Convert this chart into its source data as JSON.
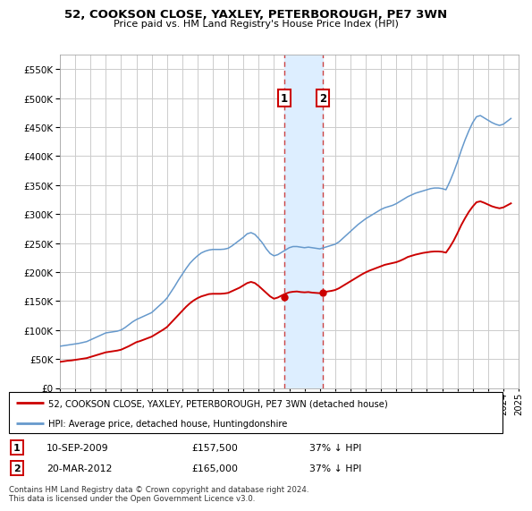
{
  "title": "52, COOKSON CLOSE, YAXLEY, PETERBOROUGH, PE7 3WN",
  "subtitle": "Price paid vs. HM Land Registry's House Price Index (HPI)",
  "legend_line1": "52, COOKSON CLOSE, YAXLEY, PETERBOROUGH, PE7 3WN (detached house)",
  "legend_line2": "HPI: Average price, detached house, Huntingdonshire",
  "footer": "Contains HM Land Registry data © Crown copyright and database right 2024.\nThis data is licensed under the Open Government Licence v3.0.",
  "transaction1_date": "10-SEP-2009",
  "transaction1_price": "£157,500",
  "transaction1_hpi": "37% ↓ HPI",
  "transaction1_year": 2009.69,
  "transaction1_value": 157500,
  "transaction2_date": "20-MAR-2012",
  "transaction2_price": "£165,000",
  "transaction2_hpi": "37% ↓ HPI",
  "transaction2_year": 2012.22,
  "transaction2_value": 165000,
  "red_color": "#cc0000",
  "blue_color": "#6699cc",
  "background_color": "#ffffff",
  "grid_color": "#cccccc",
  "shade_color": "#ddeeff",
  "ylim": [
    0,
    575000
  ],
  "yticks": [
    0,
    50000,
    100000,
    150000,
    200000,
    250000,
    300000,
    350000,
    400000,
    450000,
    500000,
    550000
  ],
  "xlim": [
    1995,
    2025
  ],
  "hpi_data_years": [
    1995.0,
    1995.25,
    1995.5,
    1995.75,
    1996.0,
    1996.25,
    1996.5,
    1996.75,
    1997.0,
    1997.25,
    1997.5,
    1997.75,
    1998.0,
    1998.25,
    1998.5,
    1998.75,
    1999.0,
    1999.25,
    1999.5,
    1999.75,
    2000.0,
    2000.25,
    2000.5,
    2000.75,
    2001.0,
    2001.25,
    2001.5,
    2001.75,
    2002.0,
    2002.25,
    2002.5,
    2002.75,
    2003.0,
    2003.25,
    2003.5,
    2003.75,
    2004.0,
    2004.25,
    2004.5,
    2004.75,
    2005.0,
    2005.25,
    2005.5,
    2005.75,
    2006.0,
    2006.25,
    2006.5,
    2006.75,
    2007.0,
    2007.25,
    2007.5,
    2007.75,
    2008.0,
    2008.25,
    2008.5,
    2008.75,
    2009.0,
    2009.25,
    2009.5,
    2009.75,
    2010.0,
    2010.25,
    2010.5,
    2010.75,
    2011.0,
    2011.25,
    2011.5,
    2011.75,
    2012.0,
    2012.25,
    2012.5,
    2012.75,
    2013.0,
    2013.25,
    2013.5,
    2013.75,
    2014.0,
    2014.25,
    2014.5,
    2014.75,
    2015.0,
    2015.25,
    2015.5,
    2015.75,
    2016.0,
    2016.25,
    2016.5,
    2016.75,
    2017.0,
    2017.25,
    2017.5,
    2017.75,
    2018.0,
    2018.25,
    2018.5,
    2018.75,
    2019.0,
    2019.25,
    2019.5,
    2019.75,
    2020.0,
    2020.25,
    2020.5,
    2020.75,
    2021.0,
    2021.25,
    2021.5,
    2021.75,
    2022.0,
    2022.25,
    2022.5,
    2022.75,
    2023.0,
    2023.25,
    2023.5,
    2023.75,
    2024.0,
    2024.25,
    2024.5
  ],
  "hpi_data_values": [
    72000,
    73000,
    74000,
    75000,
    76000,
    77000,
    78500,
    80000,
    83000,
    86000,
    89000,
    92000,
    95000,
    96000,
    97000,
    98000,
    100000,
    104000,
    109000,
    114000,
    118000,
    121000,
    124000,
    127000,
    130000,
    136000,
    142000,
    148000,
    155000,
    165000,
    175000,
    186000,
    196000,
    206000,
    215000,
    222000,
    228000,
    233000,
    236000,
    238000,
    239000,
    239000,
    239000,
    239500,
    241000,
    245000,
    250000,
    255000,
    260000,
    266000,
    268000,
    265000,
    258000,
    250000,
    240000,
    232000,
    228000,
    230000,
    234000,
    238000,
    242000,
    244000,
    244000,
    243000,
    242000,
    243000,
    242000,
    241000,
    240000,
    242000,
    244000,
    246000,
    248000,
    252000,
    258000,
    264000,
    270000,
    276000,
    282000,
    287000,
    292000,
    296000,
    300000,
    304000,
    308000,
    311000,
    313000,
    315000,
    318000,
    322000,
    326000,
    330000,
    333000,
    336000,
    338000,
    340000,
    342000,
    344000,
    345000,
    345000,
    344000,
    342000,
    356000,
    372000,
    390000,
    410000,
    428000,
    444000,
    458000,
    468000,
    470000,
    466000,
    462000,
    458000,
    455000,
    453000,
    455000,
    460000,
    465000
  ],
  "red_data_years": [
    1995.0,
    1995.25,
    1995.5,
    1995.75,
    1996.0,
    1996.25,
    1996.5,
    1996.75,
    1997.0,
    1997.25,
    1997.5,
    1997.75,
    1998.0,
    1998.25,
    1998.5,
    1998.75,
    1999.0,
    1999.25,
    1999.5,
    1999.75,
    2000.0,
    2000.25,
    2000.5,
    2000.75,
    2001.0,
    2001.25,
    2001.5,
    2001.75,
    2002.0,
    2002.25,
    2002.5,
    2002.75,
    2003.0,
    2003.25,
    2003.5,
    2003.75,
    2004.0,
    2004.25,
    2004.5,
    2004.75,
    2005.0,
    2005.25,
    2005.5,
    2005.75,
    2006.0,
    2006.25,
    2006.5,
    2006.75,
    2007.0,
    2007.25,
    2007.5,
    2007.75,
    2008.0,
    2008.25,
    2008.5,
    2008.75,
    2009.0,
    2009.25,
    2009.5,
    2009.75,
    2010.0,
    2010.25,
    2010.5,
    2010.75,
    2011.0,
    2011.25,
    2011.5,
    2011.75,
    2012.0,
    2012.25,
    2012.5,
    2012.75,
    2013.0,
    2013.25,
    2013.5,
    2013.75,
    2014.0,
    2014.25,
    2014.5,
    2014.75,
    2015.0,
    2015.25,
    2015.5,
    2015.75,
    2016.0,
    2016.25,
    2016.5,
    2016.75,
    2017.0,
    2017.25,
    2017.5,
    2017.75,
    2018.0,
    2018.25,
    2018.5,
    2018.75,
    2019.0,
    2019.25,
    2019.5,
    2019.75,
    2020.0,
    2020.25,
    2020.5,
    2020.75,
    2021.0,
    2021.25,
    2021.5,
    2021.75,
    2022.0,
    2022.25,
    2022.5,
    2022.75,
    2023.0,
    2023.25,
    2023.5,
    2023.75,
    2024.0,
    2024.25,
    2024.5
  ],
  "red_data_values": [
    45000,
    46000,
    47000,
    47500,
    48500,
    49500,
    50500,
    51500,
    53500,
    55500,
    57500,
    59500,
    61500,
    62500,
    63500,
    64500,
    66000,
    69000,
    72000,
    75500,
    79000,
    81000,
    83500,
    86000,
    88500,
    92500,
    96500,
    100500,
    105000,
    112000,
    119000,
    126000,
    133000,
    140000,
    146000,
    151000,
    155000,
    158000,
    160000,
    162000,
    162500,
    162500,
    162500,
    163000,
    164000,
    167000,
    170000,
    173000,
    177000,
    181000,
    183000,
    181000,
    176000,
    170000,
    164000,
    158000,
    154000,
    156000,
    159500,
    162500,
    165000,
    166000,
    166500,
    165500,
    165000,
    165500,
    164500,
    164000,
    163500,
    165000,
    166500,
    167500,
    169000,
    172000,
    176000,
    180000,
    184000,
    188000,
    192000,
    196000,
    199500,
    202500,
    205000,
    207500,
    210000,
    212500,
    214000,
    215500,
    217000,
    219500,
    222500,
    226000,
    228000,
    230000,
    231500,
    233000,
    234000,
    235000,
    235500,
    235500,
    235000,
    233500,
    243000,
    254000,
    267000,
    281000,
    293000,
    304000,
    313000,
    320500,
    322000,
    319500,
    316500,
    313500,
    311500,
    310000,
    311500,
    315000,
    318500
  ]
}
